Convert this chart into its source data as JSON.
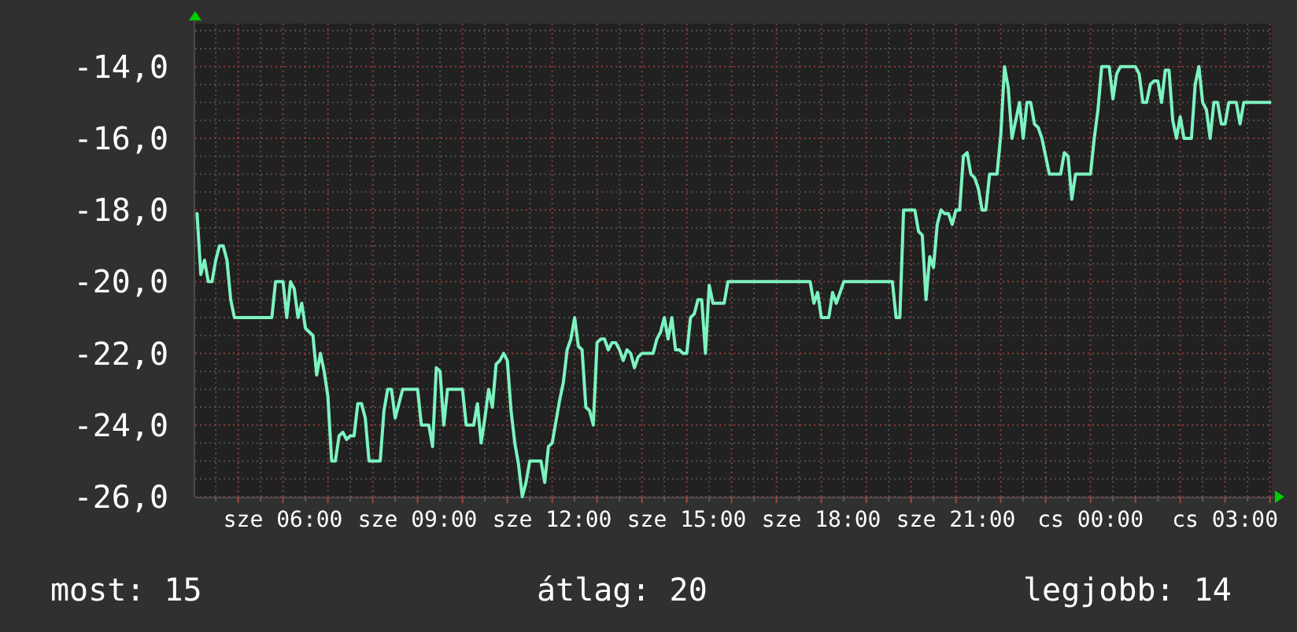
{
  "chart_data": {
    "type": "line",
    "color": "#7cf3c0",
    "grid": true,
    "ylim": [
      -26,
      -12.8
    ],
    "yticks": [
      {
        "value": -26,
        "label": "-26,0"
      },
      {
        "value": -24,
        "label": "-24,0"
      },
      {
        "value": -22,
        "label": "-22,0"
      },
      {
        "value": -20,
        "label": "-20,0"
      },
      {
        "value": -18,
        "label": "-18,0"
      },
      {
        "value": -16,
        "label": "-16,0"
      },
      {
        "value": -14,
        "label": "-14,0"
      }
    ],
    "categories": [
      null,
      null,
      null,
      null,
      null,
      null,
      null,
      null,
      null,
      null,
      null,
      null,
      null,
      null,
      null,
      null,
      null,
      null,
      null,
      null,
      null,
      null,
      null,
      "sze 06:00",
      null,
      null,
      null,
      null,
      null,
      null,
      null,
      null,
      null,
      null,
      null,
      null,
      null,
      null,
      null,
      null,
      null,
      null,
      null,
      null,
      null,
      null,
      null,
      null,
      null,
      null,
      null,
      null,
      null,
      null,
      null,
      null,
      null,
      null,
      null,
      "sze 09:00",
      null,
      null,
      null,
      null,
      null,
      null,
      null,
      null,
      null,
      null,
      null,
      null,
      null,
      null,
      null,
      null,
      null,
      null,
      null,
      null,
      null,
      null,
      null,
      null,
      null,
      null,
      null,
      null,
      null,
      null,
      null,
      null,
      null,
      null,
      null,
      "sze 12:00",
      null,
      null,
      null,
      null,
      null,
      null,
      null,
      null,
      null,
      null,
      null,
      null,
      null,
      null,
      null,
      null,
      null,
      null,
      null,
      null,
      null,
      null,
      null,
      null,
      null,
      null,
      null,
      null,
      null,
      null,
      null,
      null,
      null,
      null,
      null,
      "sze 15:00",
      null,
      null,
      null,
      null,
      null,
      null,
      null,
      null,
      null,
      null,
      null,
      null,
      null,
      null,
      null,
      null,
      null,
      null,
      null,
      null,
      null,
      null,
      null,
      null,
      null,
      null,
      null,
      null,
      null,
      null,
      null,
      null,
      null,
      null,
      null,
      "sze 18:00",
      null,
      null,
      null,
      null,
      null,
      null,
      null,
      null,
      null,
      null,
      null,
      null,
      null,
      null,
      null,
      null,
      null,
      null,
      null,
      null,
      null,
      null,
      null,
      null,
      null,
      null,
      null,
      null,
      null,
      null,
      null,
      null,
      null,
      null,
      null,
      "sze 21:00",
      null,
      null,
      null,
      null,
      null,
      null,
      null,
      null,
      null,
      null,
      null,
      null,
      null,
      null,
      null,
      null,
      null,
      null,
      null,
      null,
      null,
      null,
      null,
      null,
      null,
      null,
      null,
      null,
      null,
      null,
      null,
      null,
      null,
      null,
      null,
      "cs 00:00",
      null,
      null,
      null,
      null,
      null,
      null,
      null,
      null,
      null,
      null,
      null,
      null,
      null,
      null,
      null,
      null,
      null,
      null,
      null,
      null,
      null,
      null,
      null,
      null,
      null,
      null,
      null,
      null,
      null,
      null,
      null,
      null,
      null,
      null,
      null,
      "cs 03:00",
      null,
      null,
      null,
      null,
      null,
      null,
      null,
      null,
      null,
      null,
      null,
      null
    ],
    "values": [
      -18.1,
      -19.8,
      -19.4,
      -20.0,
      -20.0,
      -19.4,
      -19.0,
      -19.0,
      -19.4,
      -20.5,
      -21.0,
      -21.0,
      -21.0,
      -21.0,
      -21.0,
      -21.0,
      -21.0,
      -21.0,
      -21.0,
      -21.0,
      -21.0,
      -20.0,
      -20.0,
      -20.0,
      -21.0,
      -20.0,
      -20.2,
      -21.0,
      -20.6,
      -21.3,
      -21.4,
      -21.5,
      -22.6,
      -22.0,
      -22.5,
      -23.2,
      -25.0,
      -25.0,
      -24.3,
      -24.2,
      -24.4,
      -24.3,
      -24.3,
      -23.4,
      -23.4,
      -23.8,
      -25.0,
      -25.0,
      -25.0,
      -25.0,
      -23.6,
      -23.0,
      -23.0,
      -23.8,
      -23.4,
      -23.0,
      -23.0,
      -23.0,
      -23.0,
      -23.0,
      -24.0,
      -24.0,
      -24.0,
      -24.6,
      -22.4,
      -22.5,
      -24.0,
      -23.0,
      -23.0,
      -23.0,
      -23.0,
      -23.0,
      -24.0,
      -24.0,
      -24.0,
      -23.4,
      -24.5,
      -23.8,
      -23.0,
      -23.5,
      -22.3,
      -22.2,
      -22.0,
      -22.2,
      -23.6,
      -24.5,
      -25.1,
      -26.0,
      -25.6,
      -25.0,
      -25.0,
      -25.0,
      -25.0,
      -25.6,
      -24.6,
      -24.5,
      -23.9,
      -23.3,
      -22.8,
      -21.9,
      -21.6,
      -21.0,
      -21.8,
      -21.9,
      -23.5,
      -23.6,
      -24.0,
      -21.7,
      -21.6,
      -21.6,
      -21.9,
      -21.7,
      -21.7,
      -21.9,
      -22.2,
      -21.9,
      -22.0,
      -22.4,
      -22.1,
      -22.0,
      -22.0,
      -22.0,
      -22.0,
      -21.6,
      -21.4,
      -21.0,
      -21.6,
      -21.0,
      -21.9,
      -21.9,
      -22.0,
      -22.0,
      -21.0,
      -20.9,
      -20.5,
      -20.5,
      -22.0,
      -20.1,
      -20.6,
      -20.6,
      -20.6,
      -20.6,
      -20.0,
      -20.0,
      -20.0,
      -20.0,
      -20.0,
      -20.0,
      -20.0,
      -20.0,
      -20.0,
      -20.0,
      -20.0,
      -20.0,
      -20.0,
      -20.0,
      -20.0,
      -20.0,
      -20.0,
      -20.0,
      -20.0,
      -20.0,
      -20.0,
      -20.0,
      -20.0,
      -20.6,
      -20.3,
      -21.0,
      -21.0,
      -21.0,
      -20.3,
      -20.6,
      -20.3,
      -20.0,
      -20.0,
      -20.0,
      -20.0,
      -20.0,
      -20.0,
      -20.0,
      -20.0,
      -20.0,
      -20.0,
      -20.0,
      -20.0,
      -20.0,
      -20.0,
      -21.0,
      -21.0,
      -18.0,
      -18.0,
      -18.0,
      -18.0,
      -18.6,
      -18.7,
      -20.5,
      -19.3,
      -19.6,
      -18.4,
      -18.0,
      -18.1,
      -18.1,
      -18.4,
      -18.0,
      -18.0,
      -16.5,
      -16.4,
      -17.0,
      -17.1,
      -17.4,
      -18.0,
      -18.0,
      -17.0,
      -17.0,
      -17.0,
      -15.9,
      -14.0,
      -14.6,
      -16.0,
      -15.5,
      -15.0,
      -16.0,
      -15.0,
      -15.0,
      -15.6,
      -15.7,
      -16.0,
      -16.5,
      -17.0,
      -17.0,
      -17.0,
      -17.0,
      -16.4,
      -16.5,
      -17.7,
      -17.0,
      -17.0,
      -17.0,
      -17.0,
      -17.0,
      -16.0,
      -15.2,
      -14.0,
      -14.0,
      -14.0,
      -14.9,
      -14.2,
      -14.0,
      -14.0,
      -14.0,
      -14.0,
      -14.0,
      -14.2,
      -15.0,
      -15.0,
      -14.5,
      -14.4,
      -14.4,
      -15.0,
      -14.1,
      -14.1,
      -15.5,
      -16.0,
      -15.4,
      -16.0,
      -16.0,
      -16.0,
      -14.5,
      -14.0,
      -15.0,
      -15.2,
      -16.0,
      -15.0,
      -15.0,
      -15.6,
      -15.6,
      -15.0,
      -15.0,
      -15.0,
      -15.6,
      -15.0,
      -15.0,
      -15.0,
      -15.0,
      -15.0,
      -15.0,
      -15.0,
      -15.0
    ],
    "annotations": [
      "most: 15",
      "átlag: 20",
      "legjobb: 14"
    ]
  }
}
